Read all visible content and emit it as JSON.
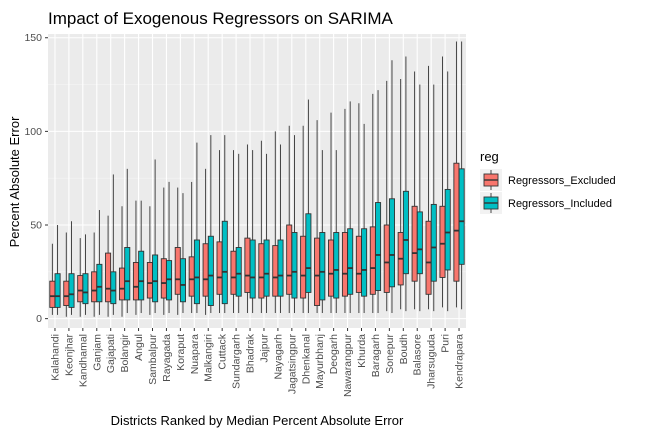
{
  "chart_data": {
    "type": "boxplot",
    "title": "Impact of Exogenous Regressors on SARIMA",
    "xlabel": "Districts Ranked by Median Percent Absolute Error",
    "ylabel": "Percent Absolute Error",
    "ylim": [
      -5,
      152
    ],
    "yticks": [
      0,
      50,
      100,
      150
    ],
    "legend": {
      "title": "reg",
      "position": "right",
      "entries": [
        {
          "name": "Regressors_Excluded",
          "color": "#F8766D"
        },
        {
          "name": "Regressors_Included",
          "color": "#00BFC4"
        }
      ]
    },
    "categories": [
      "Kalahandi",
      "Keonjhar",
      "Kandhamal",
      "Ganjam",
      "Gajapati",
      "Bolangir",
      "Angul",
      "Sambalpur",
      "Rayagada",
      "Koraput",
      "Nuapara",
      "Malkangiri",
      "Cuttack",
      "Sundargarh",
      "Bhadrak",
      "Jajpur",
      "Nayagarh",
      "Jagatsingpur",
      "Dhenkanal",
      "Mayurbhanj",
      "Deogarh",
      "Nawarangpur",
      "Khurda",
      "Baragarh",
      "Sonepur",
      "Boudh",
      "Balasore",
      "Jharsuguda",
      "Puri",
      "Kendrapara"
    ],
    "series": [
      {
        "name": "Regressors_Excluded",
        "boxes": [
          {
            "min": 2,
            "q1": 6,
            "median": 12,
            "q3": 20,
            "max": 40
          },
          {
            "min": 1,
            "q1": 7,
            "median": 12,
            "q3": 20,
            "max": 46
          },
          {
            "min": 1,
            "q1": 9,
            "median": 15,
            "q3": 23,
            "max": 43
          },
          {
            "min": 1,
            "q1": 9,
            "median": 15,
            "q3": 25,
            "max": 46
          },
          {
            "min": 1,
            "q1": 9,
            "median": 16,
            "q3": 35,
            "max": 55
          },
          {
            "min": 1,
            "q1": 10,
            "median": 16,
            "q3": 27,
            "max": 60
          },
          {
            "min": 2,
            "q1": 10,
            "median": 17,
            "q3": 30,
            "max": 63
          },
          {
            "min": 2,
            "q1": 11,
            "median": 19,
            "q3": 30,
            "max": 60
          },
          {
            "min": 2,
            "q1": 11,
            "median": 19,
            "q3": 32,
            "max": 70
          },
          {
            "min": 2,
            "q1": 13,
            "median": 21,
            "q3": 38,
            "max": 70
          },
          {
            "min": 3,
            "q1": 12,
            "median": 21,
            "q3": 33,
            "max": 73
          },
          {
            "min": 2,
            "q1": 12,
            "median": 21,
            "q3": 40,
            "max": 80
          },
          {
            "min": 3,
            "q1": 13,
            "median": 22,
            "q3": 41,
            "max": 90
          },
          {
            "min": 3,
            "q1": 13,
            "median": 22,
            "q3": 36,
            "max": 90
          },
          {
            "min": 3,
            "q1": 14,
            "median": 23,
            "q3": 43,
            "max": 93
          },
          {
            "min": 3,
            "q1": 11,
            "median": 22,
            "q3": 40,
            "max": 95
          },
          {
            "min": 3,
            "q1": 12,
            "median": 22,
            "q3": 39,
            "max": 100
          },
          {
            "min": 3,
            "q1": 13,
            "median": 23,
            "q3": 50,
            "max": 103
          },
          {
            "min": 3,
            "q1": 11,
            "median": 23,
            "q3": 44,
            "max": 103
          },
          {
            "min": 3,
            "q1": 7,
            "median": 23,
            "q3": 43,
            "max": 106
          },
          {
            "min": 3,
            "q1": 12,
            "median": 24,
            "q3": 42,
            "max": 110
          },
          {
            "min": 3,
            "q1": 12,
            "median": 24,
            "q3": 46,
            "max": 112
          },
          {
            "min": 3,
            "q1": 14,
            "median": 24,
            "q3": 44,
            "max": 115
          },
          {
            "min": 3,
            "q1": 13,
            "median": 27,
            "q3": 49,
            "max": 120
          },
          {
            "min": 4,
            "q1": 14,
            "median": 30,
            "q3": 50,
            "max": 127
          },
          {
            "min": 5,
            "q1": 18,
            "median": 32,
            "q3": 46,
            "max": 128
          },
          {
            "min": 5,
            "q1": 20,
            "median": 35,
            "q3": 60,
            "max": 132
          },
          {
            "min": 5,
            "q1": 13,
            "median": 30,
            "q3": 52,
            "max": 135
          },
          {
            "min": 6,
            "q1": 22,
            "median": 40,
            "q3": 60,
            "max": 140
          },
          {
            "min": 6,
            "q1": 20,
            "median": 47,
            "q3": 83,
            "max": 148
          }
        ]
      },
      {
        "name": "Regressors_Included",
        "boxes": [
          {
            "min": 2,
            "q1": 6,
            "median": 12,
            "q3": 24,
            "max": 50
          },
          {
            "min": 2,
            "q1": 6,
            "median": 13,
            "q3": 24,
            "max": 52
          },
          {
            "min": 2,
            "q1": 8,
            "median": 14,
            "q3": 24,
            "max": 45
          },
          {
            "min": 2,
            "q1": 9,
            "median": 17,
            "q3": 29,
            "max": 58
          },
          {
            "min": 2,
            "q1": 8,
            "median": 15,
            "q3": 25,
            "max": 77
          },
          {
            "min": 3,
            "q1": 10,
            "median": 20,
            "q3": 38,
            "max": 80
          },
          {
            "min": 3,
            "q1": 10,
            "median": 20,
            "q3": 36,
            "max": 63
          },
          {
            "min": 3,
            "q1": 9,
            "median": 20,
            "q3": 34,
            "max": 85
          },
          {
            "min": 3,
            "q1": 10,
            "median": 21,
            "q3": 31,
            "max": 73
          },
          {
            "min": 3,
            "q1": 9,
            "median": 18,
            "q3": 32,
            "max": 67
          },
          {
            "min": 3,
            "q1": 8,
            "median": 22,
            "q3": 42,
            "max": 94
          },
          {
            "min": 3,
            "q1": 7,
            "median": 23,
            "q3": 44,
            "max": 98
          },
          {
            "min": 3,
            "q1": 8,
            "median": 25,
            "q3": 52,
            "max": 98
          },
          {
            "min": 3,
            "q1": 12,
            "median": 24,
            "q3": 38,
            "max": 88
          },
          {
            "min": 3,
            "q1": 11,
            "median": 22,
            "q3": 42,
            "max": 90
          },
          {
            "min": 3,
            "q1": 12,
            "median": 24,
            "q3": 42,
            "max": 88
          },
          {
            "min": 3,
            "q1": 12,
            "median": 23,
            "q3": 42,
            "max": 93
          },
          {
            "min": 3,
            "q1": 11,
            "median": 25,
            "q3": 46,
            "max": 98
          },
          {
            "min": 3,
            "q1": 14,
            "median": 27,
            "q3": 56,
            "max": 117
          },
          {
            "min": 3,
            "q1": 10,
            "median": 25,
            "q3": 46,
            "max": 90
          },
          {
            "min": 3,
            "q1": 11,
            "median": 26,
            "q3": 46,
            "max": 90
          },
          {
            "min": 3,
            "q1": 13,
            "median": 27,
            "q3": 48,
            "max": 116
          },
          {
            "min": 3,
            "q1": 12,
            "median": 26,
            "q3": 48,
            "max": 104
          },
          {
            "min": 3,
            "q1": 15,
            "median": 34,
            "q3": 62,
            "max": 122
          },
          {
            "min": 3,
            "q1": 17,
            "median": 34,
            "q3": 64,
            "max": 138
          },
          {
            "min": 4,
            "q1": 24,
            "median": 42,
            "q3": 68,
            "max": 140
          },
          {
            "min": 4,
            "q1": 24,
            "median": 37,
            "q3": 57,
            "max": 125
          },
          {
            "min": 4,
            "q1": 20,
            "median": 38,
            "q3": 61,
            "max": 125
          },
          {
            "min": 4,
            "q1": 26,
            "median": 46,
            "q3": 69,
            "max": 132
          },
          {
            "min": 5,
            "q1": 29,
            "median": 52,
            "q3": 80,
            "max": 148
          }
        ]
      }
    ]
  }
}
